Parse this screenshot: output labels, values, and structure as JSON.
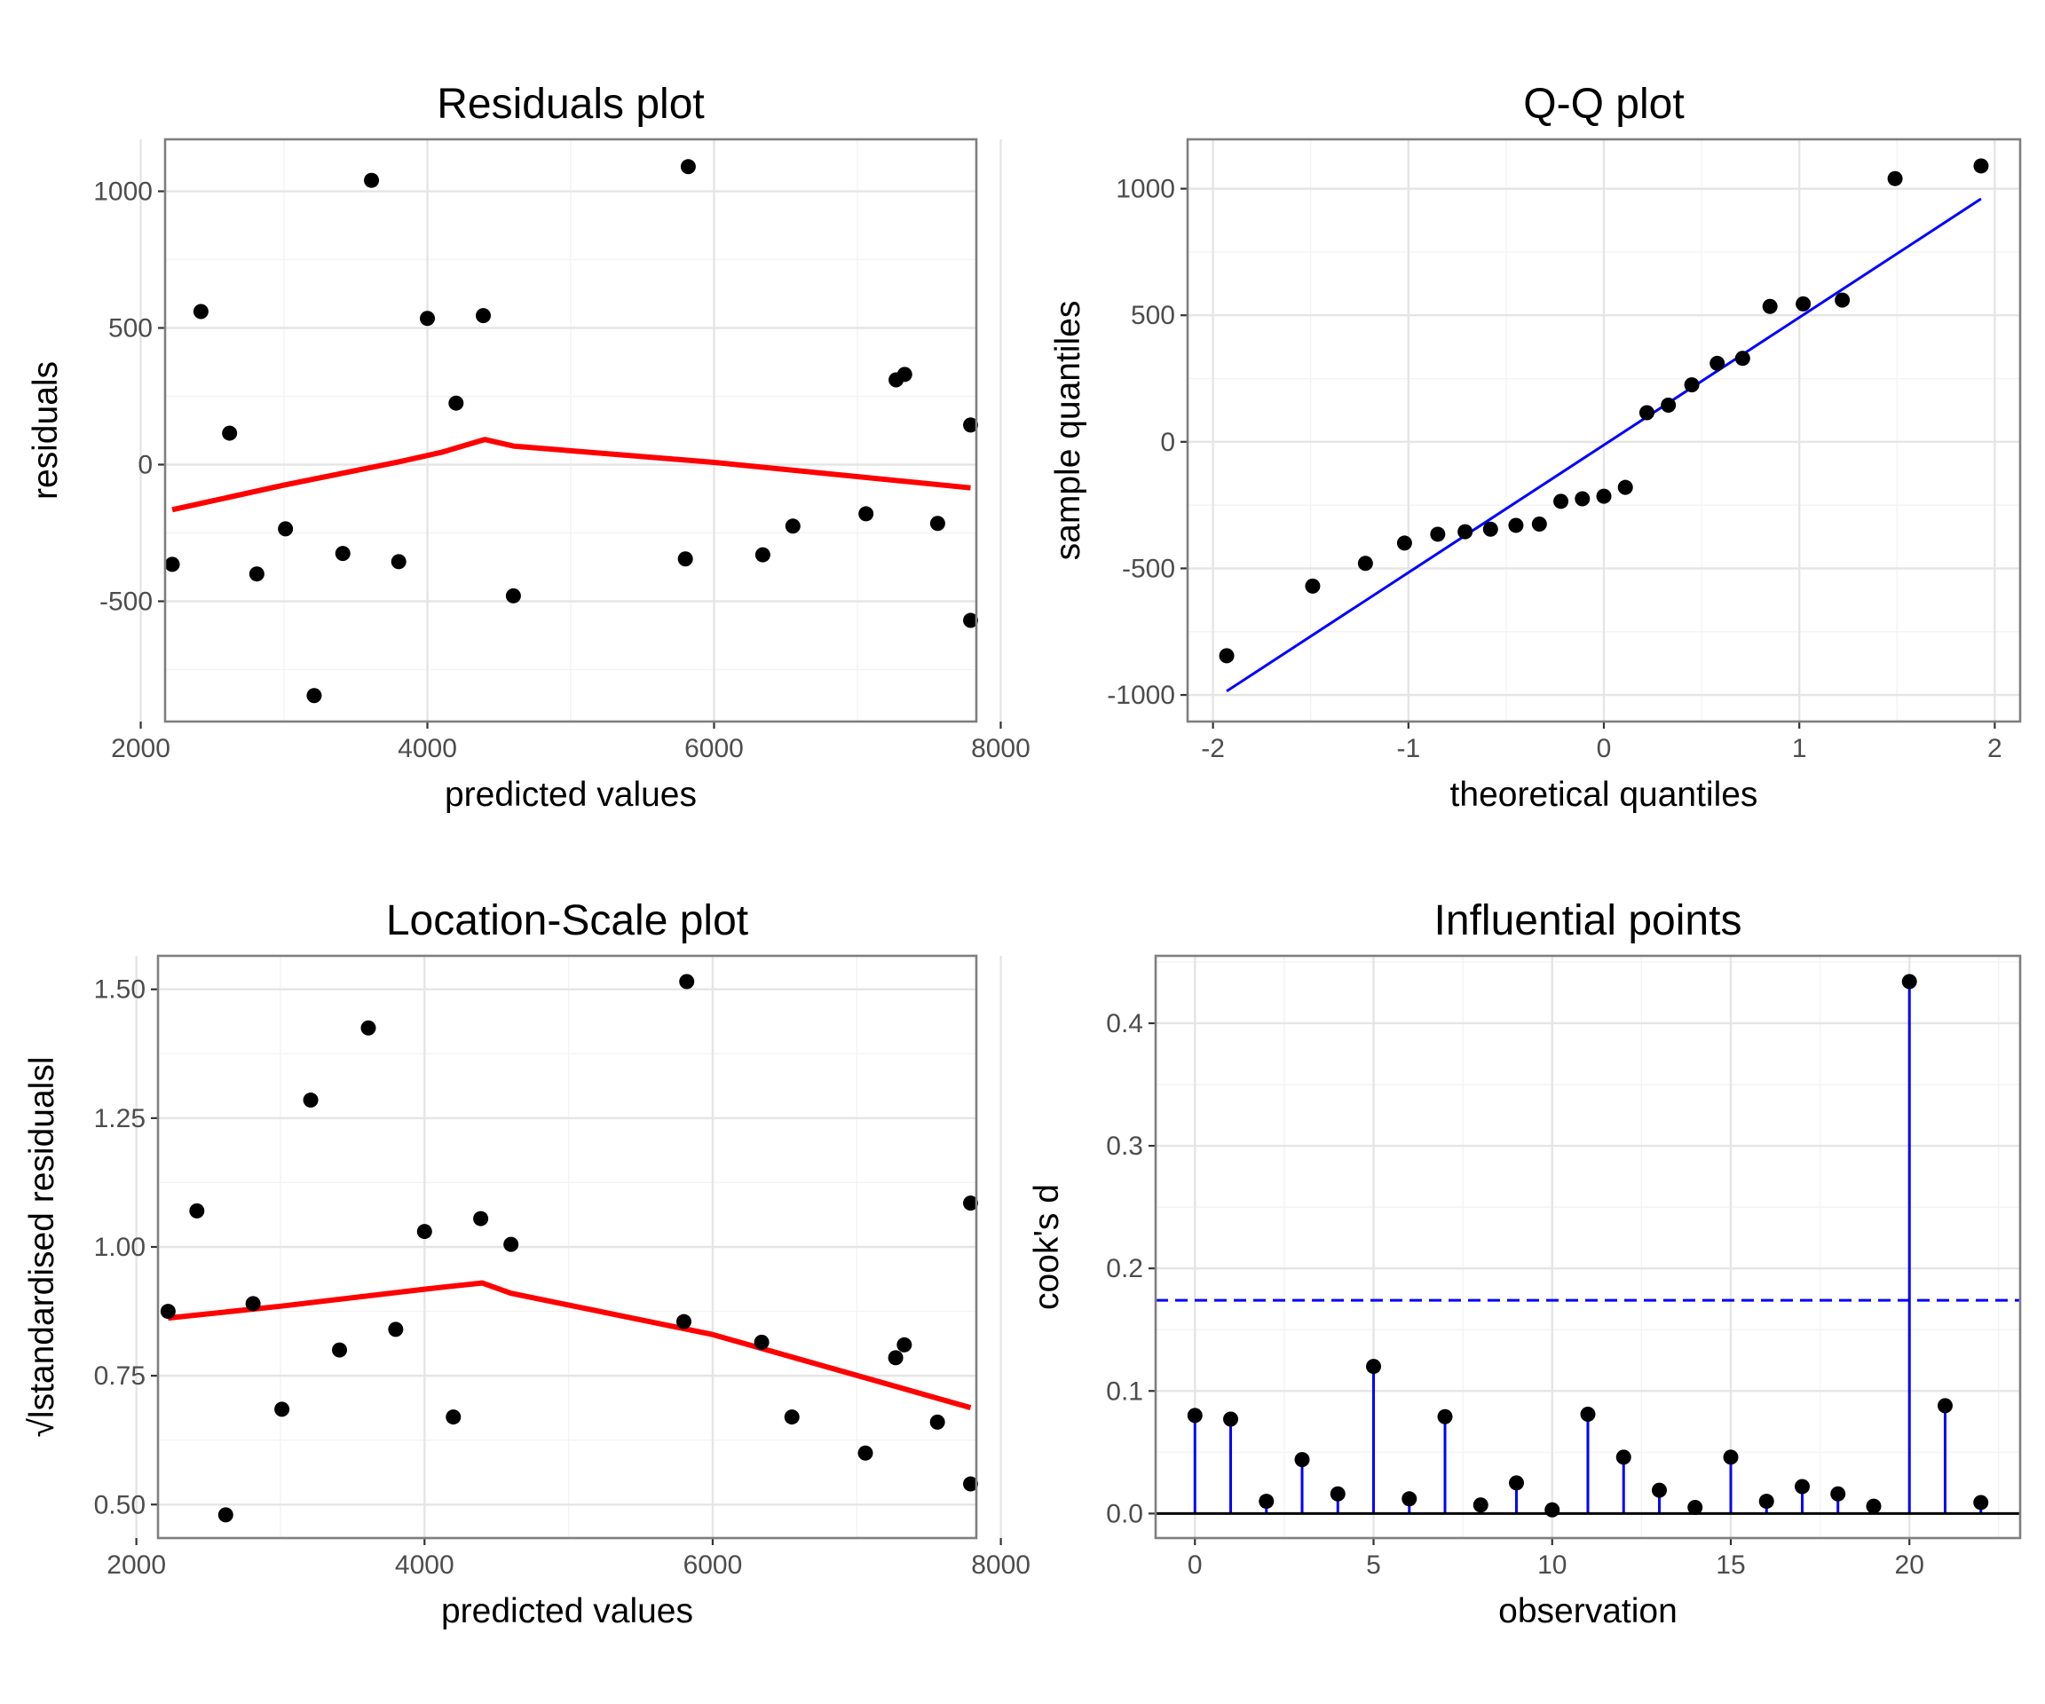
{
  "chart_data": [
    {
      "id": "residuals",
      "type": "scatter",
      "title": "Residuals plot",
      "xlabel": "predicted values",
      "ylabel": "residuals",
      "xlim": [
        2170,
        7830
      ],
      "ylim": [
        -940,
        1190
      ],
      "xticks": [
        2000,
        4000,
        6000,
        8000
      ],
      "yticks": [
        -500,
        0,
        500,
        1000
      ],
      "xtick_labels": [
        "2000",
        "4000",
        "6000",
        "8000"
      ],
      "ytick_labels": [
        "-500",
        "0",
        "500",
        "1000"
      ],
      "grid": true,
      "points": [
        [
          2220,
          -365
        ],
        [
          2420,
          560
        ],
        [
          2620,
          115
        ],
        [
          2810,
          -400
        ],
        [
          3010,
          -235
        ],
        [
          3210,
          -845
        ],
        [
          3410,
          -325
        ],
        [
          3610,
          1040
        ],
        [
          3800,
          -355
        ],
        [
          4000,
          535
        ],
        [
          4200,
          225
        ],
        [
          4390,
          545
        ],
        [
          4600,
          -480
        ],
        [
          5800,
          -345
        ],
        [
          5820,
          1090
        ],
        [
          6340,
          -330
        ],
        [
          6550,
          -225
        ],
        [
          7060,
          -180
        ],
        [
          7270,
          310
        ],
        [
          7330,
          330
        ],
        [
          7560,
          -215
        ],
        [
          7790,
          145
        ],
        [
          7790,
          -570
        ]
      ],
      "point_color": "#000000",
      "trend": [
        [
          2220,
          -165
        ],
        [
          3000,
          -75
        ],
        [
          3800,
          10
        ],
        [
          4100,
          45
        ],
        [
          4400,
          92
        ],
        [
          4600,
          68
        ],
        [
          6000,
          8
        ],
        [
          7790,
          -85
        ]
      ],
      "trend_color": "#ff0000"
    },
    {
      "id": "qq",
      "type": "scatter",
      "title": "Q-Q plot",
      "xlabel": "theoretical quantiles",
      "ylabel": "sample quantiles",
      "xlim": [
        -2.13,
        2.13
      ],
      "ylim": [
        -1105,
        1195
      ],
      "xticks": [
        -2,
        -1,
        0,
        1,
        2
      ],
      "yticks": [
        -1000,
        -500,
        0,
        500,
        1000
      ],
      "xtick_labels": [
        "-2",
        "-1",
        "0",
        "1",
        "2"
      ],
      "ytick_labels": [
        "-1000",
        "-500",
        "0",
        "500",
        "1000"
      ],
      "grid": true,
      "points": [
        [
          -1.93,
          -845
        ],
        [
          -1.49,
          -570
        ],
        [
          -1.22,
          -480
        ],
        [
          -1.02,
          -400
        ],
        [
          -0.85,
          -365
        ],
        [
          -0.71,
          -355
        ],
        [
          -0.58,
          -345
        ],
        [
          -0.45,
          -330
        ],
        [
          -0.33,
          -325
        ],
        [
          -0.22,
          -235
        ],
        [
          -0.11,
          -225
        ],
        [
          0,
          -215
        ],
        [
          0.11,
          -180
        ],
        [
          0.22,
          115
        ],
        [
          0.33,
          145
        ],
        [
          0.45,
          225
        ],
        [
          0.58,
          310
        ],
        [
          0.71,
          330
        ],
        [
          0.85,
          535
        ],
        [
          1.02,
          545
        ],
        [
          1.22,
          560
        ],
        [
          1.49,
          1040
        ],
        [
          1.93,
          1090
        ]
      ],
      "point_color": "#000000",
      "reference_line": [
        [
          -1.93,
          -985
        ],
        [
          1.93,
          960
        ]
      ],
      "line_color": "#0000ff"
    },
    {
      "id": "location-scale",
      "type": "scatter",
      "title": "Location-Scale plot",
      "xlabel": "predicted values",
      "ylabel": "√lstandardised residualsl",
      "xlim": [
        2150,
        7830
      ],
      "ylim": [
        0.435,
        1.565
      ],
      "xticks": [
        2000,
        4000,
        6000,
        8000
      ],
      "yticks": [
        0.5,
        0.75,
        1.0,
        1.25,
        1.5
      ],
      "xtick_labels": [
        "2000",
        "4000",
        "6000",
        "8000"
      ],
      "ytick_labels": [
        "0.50",
        "0.75",
        "1.00",
        "1.25",
        "1.50"
      ],
      "grid": true,
      "points": [
        [
          2220,
          0.875
        ],
        [
          2420,
          1.07
        ],
        [
          2620,
          0.48
        ],
        [
          2810,
          0.89
        ],
        [
          3010,
          0.685
        ],
        [
          3210,
          1.285
        ],
        [
          3410,
          0.8
        ],
        [
          3610,
          1.425
        ],
        [
          3800,
          0.84
        ],
        [
          4000,
          1.03
        ],
        [
          4200,
          0.67
        ],
        [
          4390,
          1.055
        ],
        [
          4600,
          1.005
        ],
        [
          5800,
          0.855
        ],
        [
          5820,
          1.515
        ],
        [
          6340,
          0.815
        ],
        [
          6550,
          0.67
        ],
        [
          7060,
          0.6
        ],
        [
          7270,
          0.785
        ],
        [
          7330,
          0.81
        ],
        [
          7560,
          0.66
        ],
        [
          7790,
          1.085
        ],
        [
          7790,
          0.54
        ]
      ],
      "point_color": "#000000",
      "trend": [
        [
          2220,
          0.862
        ],
        [
          3000,
          0.885
        ],
        [
          4000,
          0.918
        ],
        [
          4400,
          0.93
        ],
        [
          4600,
          0.91
        ],
        [
          6000,
          0.83
        ],
        [
          7790,
          0.688
        ]
      ],
      "trend_color": "#ff0000"
    },
    {
      "id": "influence",
      "type": "stem",
      "title": "Influential points",
      "xlabel": "observation",
      "ylabel": "cook's d",
      "xlim": [
        -1.1,
        23.1
      ],
      "ylim": [
        -0.02,
        0.455
      ],
      "xticks": [
        0,
        5,
        10,
        15,
        20
      ],
      "yticks": [
        0.0,
        0.1,
        0.2,
        0.3,
        0.4
      ],
      "xtick_labels": [
        "0",
        "5",
        "10",
        "15",
        "20"
      ],
      "ytick_labels": [
        "0.0",
        "0.1",
        "0.2",
        "0.3",
        "0.4"
      ],
      "grid": true,
      "values": [
        0.08,
        0.077,
        0.01,
        0.044,
        0.016,
        0.12,
        0.012,
        0.079,
        0.007,
        0.025,
        0.003,
        0.081,
        0.046,
        0.019,
        0.005,
        0.046,
        0.01,
        0.022,
        0.016,
        0.006,
        0.434,
        0.088,
        0.009
      ],
      "threshold": 0.174,
      "stem_color": "#0000ff",
      "threshold_color": "#0000ff",
      "baseline_color": "#000000",
      "point_color": "#000000"
    }
  ]
}
